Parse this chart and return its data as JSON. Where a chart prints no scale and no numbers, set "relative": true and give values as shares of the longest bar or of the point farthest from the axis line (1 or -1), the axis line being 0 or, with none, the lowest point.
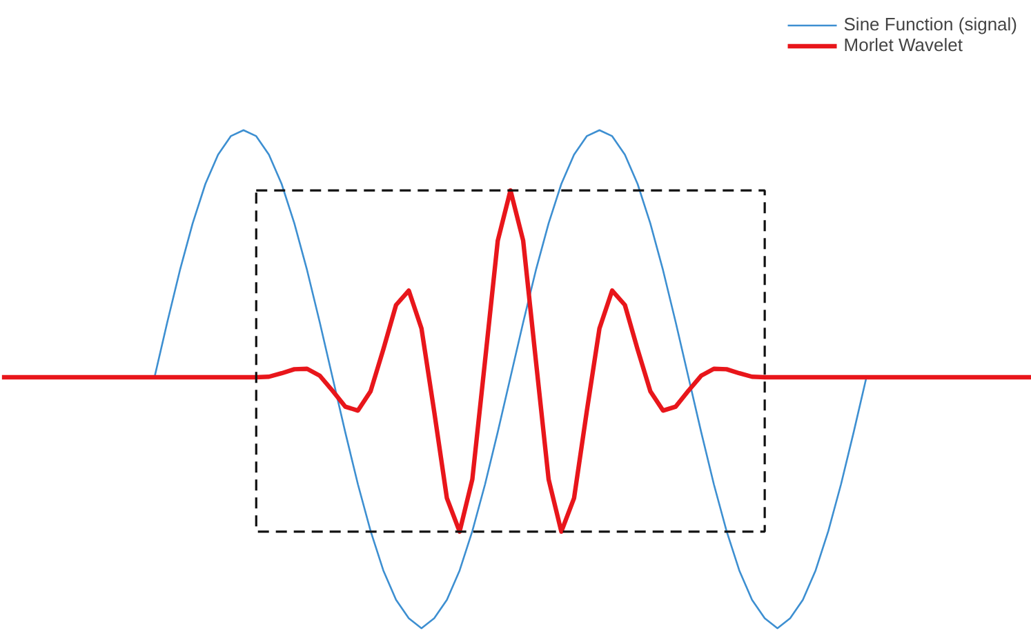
{
  "chart_data": {
    "type": "line",
    "relative": true,
    "grid": false,
    "legend": "top right",
    "marker": "none",
    "categories": [
      null,
      null,
      null,
      null,
      null,
      null,
      null,
      null,
      null,
      null,
      null,
      null,
      null,
      null,
      null,
      null,
      null,
      null,
      null,
      null,
      null,
      null,
      null,
      null,
      null,
      null,
      null,
      null,
      null,
      null,
      null,
      null,
      null,
      null,
      null,
      null,
      null,
      null,
      null,
      null,
      null,
      null,
      null,
      null,
      null,
      null,
      null,
      null,
      null,
      null,
      null,
      null,
      null,
      null,
      null,
      null,
      null,
      null,
      null,
      null,
      null,
      null,
      null,
      null,
      null,
      null,
      null,
      null,
      null,
      null,
      null,
      null,
      null,
      null,
      null,
      null,
      null,
      null,
      null,
      null,
      null,
      null
    ],
    "series": [
      {
        "name": "Sine Function (signal)",
        "color": "#3d8fd1",
        "line_style": "solid",
        "values": [
          null,
          null,
          null,
          null,
          null,
          null,
          null,
          null,
          null,
          null,
          null,
          null,
          0.504,
          0.614,
          0.719,
          0.813,
          0.892,
          0.951,
          0.988,
          1,
          0.988,
          0.951,
          0.892,
          0.813,
          0.719,
          0.614,
          0.504,
          0.394,
          0.289,
          0.195,
          0.116,
          0.057,
          0.02,
          0,
          0.02,
          0.057,
          0.116,
          0.195,
          0.289,
          0.394,
          0.504,
          0.614,
          0.719,
          0.813,
          0.892,
          0.951,
          0.988,
          1,
          0.988,
          0.951,
          0.892,
          0.813,
          0.719,
          0.614,
          0.504,
          0.394,
          0.289,
          0.195,
          0.116,
          0.057,
          0.02,
          0,
          0.02,
          0.057,
          0.116,
          0.195,
          0.289,
          0.394,
          0.504,
          null,
          null,
          null,
          null,
          null,
          null,
          null,
          null,
          null,
          null,
          null,
          null,
          null
        ]
      },
      {
        "name": "Morlet Wavelet",
        "color": "#e8161b",
        "line_style": "solid",
        "values": [
          0.504,
          0.504,
          0.504,
          0.504,
          0.504,
          0.504,
          0.504,
          0.504,
          0.504,
          0.504,
          0.504,
          0.504,
          0.504,
          0.504,
          0.504,
          0.504,
          0.504,
          0.504,
          0.504,
          0.504,
          0.504,
          0.505,
          0.512,
          0.52,
          0.521,
          0.507,
          0.477,
          0.445,
          0.437,
          0.476,
          0.56,
          0.649,
          0.678,
          0.602,
          0.435,
          0.261,
          0.194,
          0.299,
          0.537,
          0.778,
          0.879,
          0.778,
          0.537,
          0.299,
          0.194,
          0.261,
          0.435,
          0.602,
          0.678,
          0.649,
          0.56,
          0.476,
          0.437,
          0.445,
          0.477,
          0.507,
          0.521,
          0.52,
          0.512,
          0.505,
          0.504,
          0.504,
          0.504,
          0.504,
          0.504,
          0.504,
          0.504,
          0.504,
          0.504,
          0.504,
          0.504,
          0.504,
          0.504,
          0.504,
          0.504,
          0.504,
          0.504,
          0.504,
          0.504,
          0.504,
          0.504,
          0.504
        ]
      }
    ]
  }
}
